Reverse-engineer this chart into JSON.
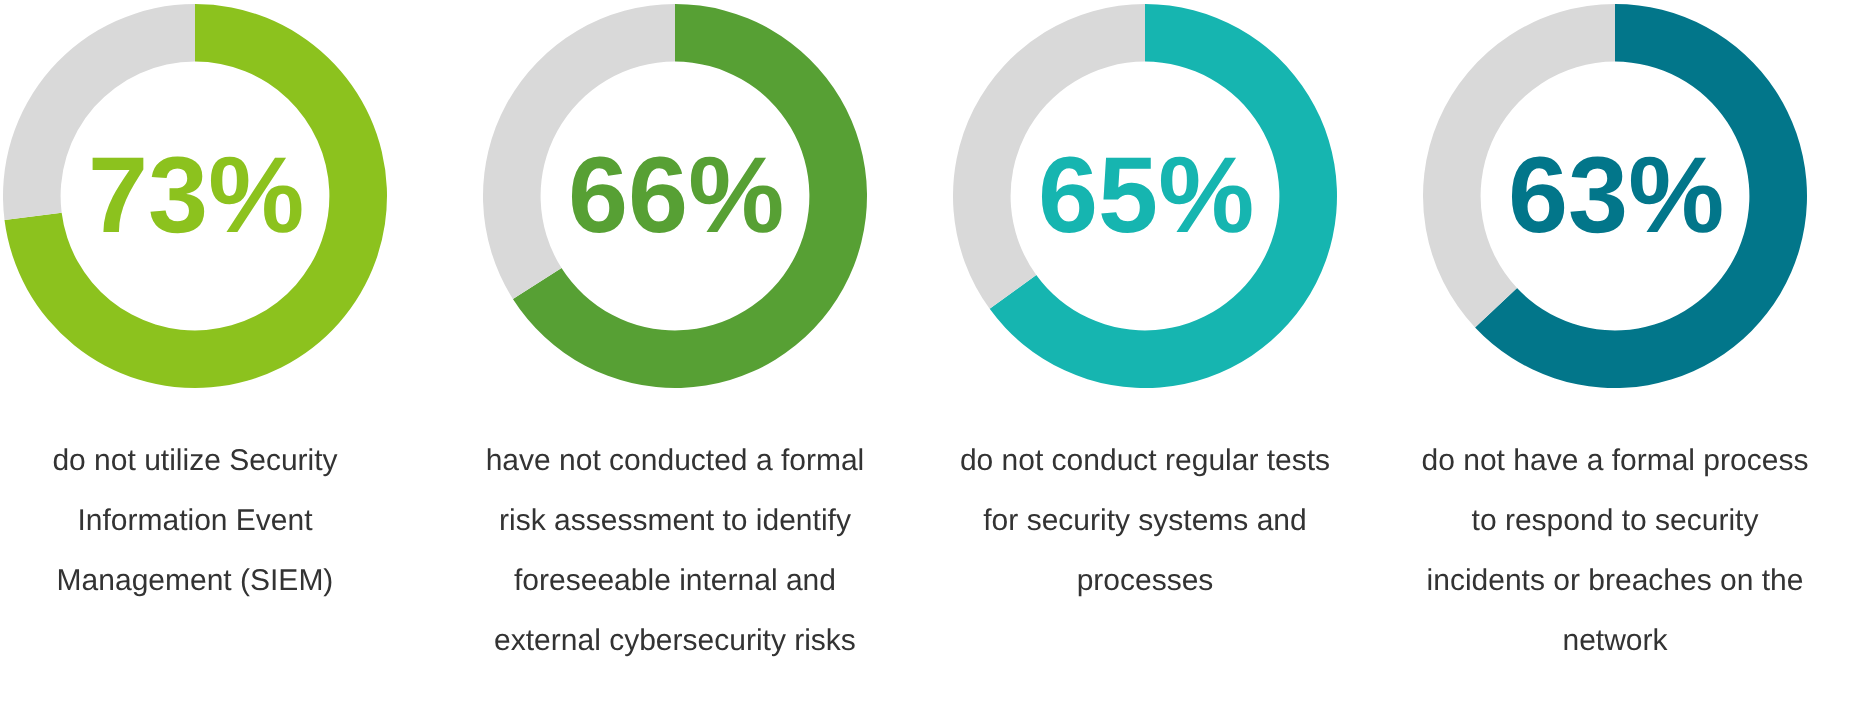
{
  "chart_data": [
    {
      "type": "donut",
      "title": "do not utilize Security Information Event Management (SIEM)",
      "categories": [
        null,
        null
      ],
      "values": [
        73,
        27
      ],
      "colors": [
        "#8cc21e",
        "#d9d9d9"
      ],
      "annotations": [
        "73%"
      ]
    },
    {
      "type": "donut",
      "title": "have not conducted a formal risk assessment to identify foreseeable internal and external cybersecurity risks",
      "categories": [
        null,
        null
      ],
      "values": [
        66,
        34
      ],
      "colors": [
        "#57a034",
        "#d9d9d9"
      ],
      "annotations": [
        "66%"
      ]
    },
    {
      "type": "donut",
      "title": "do not conduct regular tests for security systems and processes",
      "categories": [
        null,
        null
      ],
      "values": [
        65,
        35
      ],
      "colors": [
        "#16b5b0",
        "#d9d9d9"
      ],
      "annotations": [
        "65%"
      ]
    },
    {
      "type": "donut",
      "title": "do not have a formal process to respond to security incidents or breaches on the network",
      "categories": [
        null,
        null
      ],
      "values": [
        63,
        37
      ],
      "colors": [
        "#02768a",
        "#d9d9d9"
      ],
      "annotations": [
        "63%"
      ]
    }
  ]
}
